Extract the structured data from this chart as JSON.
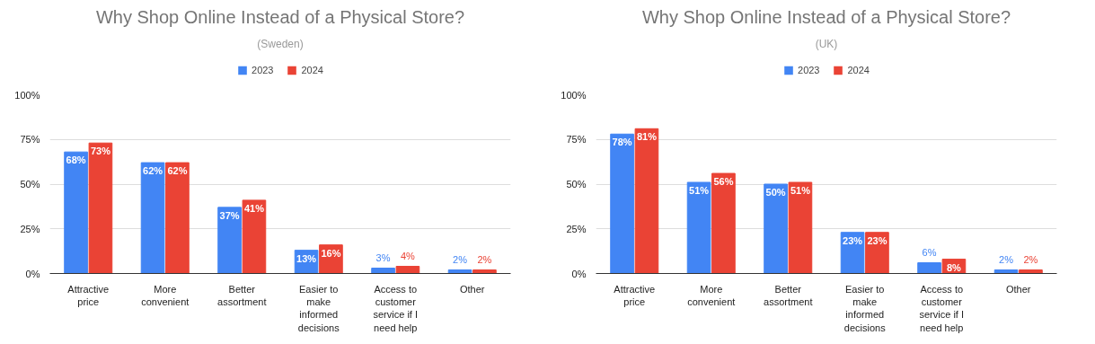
{
  "chart_data": [
    {
      "type": "bar",
      "title": "Why Shop Online Instead of a Physical Store?",
      "subtitle": "(Sweden)",
      "categories": [
        "Attractive price",
        "More convenient",
        "Better assortment",
        "Easier to make informed decisions",
        "Access to customer service if I need help",
        "Other"
      ],
      "series": [
        {
          "name": "2023",
          "color": "#4285f4",
          "values": [
            68,
            62,
            37,
            13,
            3,
            2
          ],
          "value_labels": [
            "68%",
            "62%",
            "37%",
            "13%",
            "3%",
            "2%"
          ]
        },
        {
          "name": "2024",
          "color": "#ea4335",
          "values": [
            73,
            62,
            41,
            16,
            4,
            2
          ],
          "value_labels": [
            "73%",
            "62%",
            "41%",
            "16%",
            "4%",
            "2%"
          ]
        }
      ],
      "ylim": [
        0,
        100
      ],
      "yticks": [
        {
          "value": 0,
          "label": "0%"
        },
        {
          "value": 25,
          "label": "25%"
        },
        {
          "value": 50,
          "label": "50%"
        },
        {
          "value": 75,
          "label": "75%"
        },
        {
          "value": 100,
          "label": "100%"
        }
      ],
      "grid": "y",
      "legend": "top"
    },
    {
      "type": "bar",
      "title": "Why Shop Online Instead of a Physical Store?",
      "subtitle": "(UK)",
      "categories": [
        "Attractive price",
        "More convenient",
        "Better assortment",
        "Easier to make informed decisions",
        "Access to customer service if I need help",
        "Other"
      ],
      "series": [
        {
          "name": "2023",
          "color": "#4285f4",
          "values": [
            78,
            51,
            50,
            23,
            6,
            2
          ],
          "value_labels": [
            "78%",
            "51%",
            "50%",
            "23%",
            "6%",
            "2%"
          ]
        },
        {
          "name": "2024",
          "color": "#ea4335",
          "values": [
            81,
            56,
            51,
            23,
            8,
            2
          ],
          "value_labels": [
            "81%",
            "56%",
            "51%",
            "23%",
            "8%",
            "2%"
          ]
        }
      ],
      "ylim": [
        0,
        100
      ],
      "yticks": [
        {
          "value": 0,
          "label": "0%"
        },
        {
          "value": 25,
          "label": "25%"
        },
        {
          "value": 50,
          "label": "50%"
        },
        {
          "value": 75,
          "label": "75%"
        },
        {
          "value": 100,
          "label": "100%"
        }
      ],
      "grid": "y",
      "legend": "top"
    }
  ]
}
